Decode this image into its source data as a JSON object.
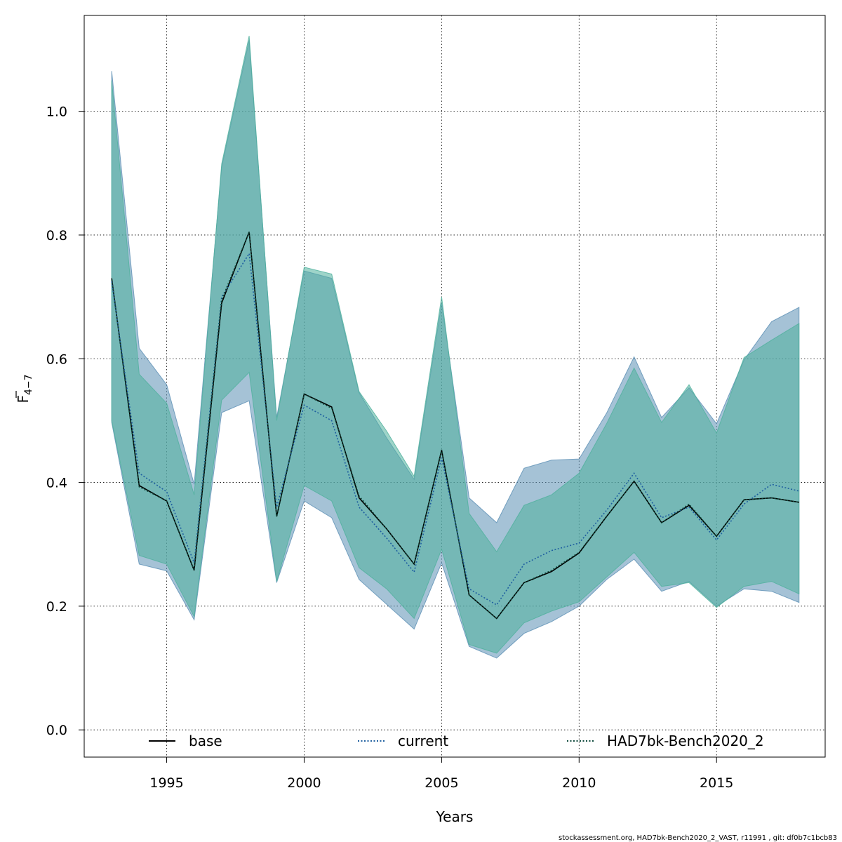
{
  "chart_data": {
    "type": "area",
    "xlabel": "Years",
    "ylabel_main": "F",
    "ylabel_sub": "4−7",
    "xlim": [
      1992.0,
      2018.95
    ],
    "ylim": [
      -0.044,
      1.155
    ],
    "xticks": [
      1995,
      2000,
      2005,
      2010,
      2015
    ],
    "yticks": [
      0.0,
      0.2,
      0.4,
      0.6,
      0.8,
      1.0
    ],
    "ytick_labels": [
      "0.0",
      "0.2",
      "0.4",
      "0.6",
      "0.8",
      "1.0"
    ],
    "grid": true,
    "legend_position": "bottom",
    "x": [
      1993,
      1994,
      1995,
      1996,
      1997,
      1998,
      1999,
      2000,
      2001,
      2002,
      2003,
      2004,
      2005,
      2006,
      2007,
      2008,
      2009,
      2010,
      2011,
      2012,
      2013,
      2014,
      2015,
      2016,
      2017,
      2018
    ],
    "series": [
      {
        "name": "base",
        "line_style": "solid",
        "line_color": "#000000",
        "band_color": "#5b8fb4",
        "values": [
          0.73,
          0.395,
          0.37,
          0.258,
          0.69,
          0.805,
          0.345,
          0.543,
          0.522,
          0.375,
          0.325,
          0.268,
          0.452,
          0.218,
          0.18,
          0.238,
          0.256,
          0.286,
          0.345,
          0.402,
          0.335,
          0.363,
          0.313,
          0.372,
          0.375,
          0.368
        ],
        "upper": [
          1.065,
          0.617,
          0.558,
          0.397,
          0.91,
          1.115,
          0.505,
          0.742,
          0.73,
          0.545,
          0.472,
          0.405,
          0.69,
          0.375,
          0.335,
          0.423,
          0.436,
          0.438,
          0.512,
          0.603,
          0.505,
          0.553,
          0.495,
          0.598,
          0.66,
          0.683
        ],
        "lower": [
          0.497,
          0.268,
          0.257,
          0.178,
          0.513,
          0.532,
          0.238,
          0.37,
          0.343,
          0.243,
          0.203,
          0.163,
          0.27,
          0.135,
          0.116,
          0.156,
          0.175,
          0.2,
          0.243,
          0.276,
          0.224,
          0.24,
          0.2,
          0.228,
          0.224,
          0.206
        ]
      },
      {
        "name": "current",
        "line_style": "dotted",
        "line_color": "#1f5fa0",
        "band_color": "#5b8fb4",
        "values": [
          0.725,
          0.415,
          0.385,
          0.27,
          0.7,
          0.77,
          0.36,
          0.525,
          0.5,
          0.36,
          0.31,
          0.255,
          0.44,
          0.228,
          0.202,
          0.268,
          0.29,
          0.302,
          0.355,
          0.415,
          0.343,
          0.36,
          0.307,
          0.365,
          0.397,
          0.386
        ],
        "upper": [
          1.06,
          0.612,
          0.555,
          0.395,
          0.91,
          1.115,
          0.5,
          0.742,
          0.73,
          0.545,
          0.47,
          0.402,
          0.69,
          0.372,
          0.335,
          0.423,
          0.436,
          0.44,
          0.512,
          0.603,
          0.505,
          0.553,
          0.495,
          0.598,
          0.66,
          0.683
        ],
        "lower": [
          0.497,
          0.268,
          0.257,
          0.178,
          0.513,
          0.532,
          0.238,
          0.37,
          0.343,
          0.243,
          0.203,
          0.163,
          0.27,
          0.135,
          0.116,
          0.156,
          0.175,
          0.2,
          0.243,
          0.276,
          0.224,
          0.24,
          0.2,
          0.228,
          0.224,
          0.206
        ]
      },
      {
        "name": "HAD7bk-Bench2020_2",
        "line_style": "dotted",
        "line_color": "#0f4a3c",
        "band_color": "#4fb09c",
        "values": [
          0.728,
          0.393,
          0.37,
          0.258,
          0.695,
          0.805,
          0.345,
          0.543,
          0.52,
          0.378,
          0.325,
          0.268,
          0.453,
          0.218,
          0.18,
          0.238,
          0.258,
          0.287,
          0.345,
          0.402,
          0.335,
          0.365,
          0.313,
          0.372,
          0.375,
          0.368
        ],
        "upper": [
          1.05,
          0.575,
          0.528,
          0.38,
          0.915,
          1.122,
          0.5,
          0.748,
          0.737,
          0.547,
          0.483,
          0.41,
          0.7,
          0.35,
          0.288,
          0.363,
          0.38,
          0.415,
          0.495,
          0.585,
          0.497,
          0.558,
          0.48,
          0.602,
          0.63,
          0.657
        ],
        "lower": [
          0.5,
          0.282,
          0.268,
          0.183,
          0.533,
          0.578,
          0.24,
          0.395,
          0.37,
          0.262,
          0.228,
          0.18,
          0.292,
          0.138,
          0.124,
          0.173,
          0.192,
          0.207,
          0.247,
          0.287,
          0.232,
          0.238,
          0.198,
          0.232,
          0.24,
          0.22
        ]
      }
    ]
  },
  "footer": {
    "text": "stockassessment.org, HAD7bk-Bench2020_2_VAST, r11991 , git: df0b7c1bcb83"
  }
}
